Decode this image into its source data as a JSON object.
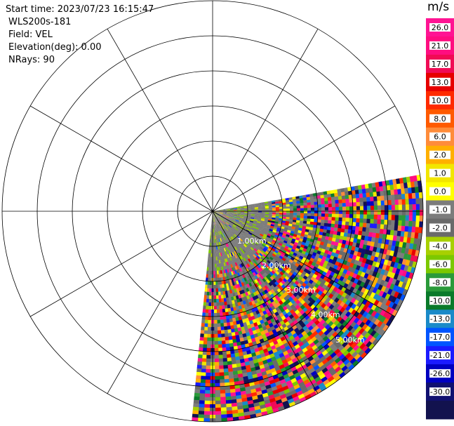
{
  "header": {
    "start_time": "Start time: 2023/07/23 16:15:47",
    "instrument": "WLS200s-181",
    "field": "Field: VEL",
    "elevation": "Elevation(deg): 0.00",
    "nrays": "NRays: 90"
  },
  "ppi": {
    "range_labels": [
      "1.00km",
      "2.00km",
      "3.00km",
      "4.00km",
      "5.00km"
    ],
    "rings": 6,
    "spokes_deg": 30,
    "sector_deg": [
      -10,
      95
    ]
  },
  "colorbar": {
    "unit": "m/s",
    "ticks": [
      "26.0",
      "21.0",
      "17.0",
      "13.0",
      "10.0",
      "8.0",
      "6.0",
      "2.0",
      "1.0",
      "0.0",
      "-1.0",
      "-2.0",
      "-4.0",
      "-6.0",
      "-8.0",
      "-10.0",
      "-13.0",
      "-17.0",
      "-21.0",
      "-26.0",
      "-30.0"
    ],
    "colors": [
      "#ff1493",
      "#ff0d80",
      "#f00b55",
      "#e60000",
      "#ff2a00",
      "#ff5a00",
      "#ff8c3a",
      "#ffb000",
      "#f2e600",
      "#ffff00",
      "#7c7c7c",
      "#6a6a6a",
      "#a8d000",
      "#7cc800",
      "#2a9a3a",
      "#0a7a2a",
      "#1a8ac8",
      "#0055ff",
      "#1b1bff",
      "#0000c0",
      "#101070",
      "#12124e"
    ]
  }
}
